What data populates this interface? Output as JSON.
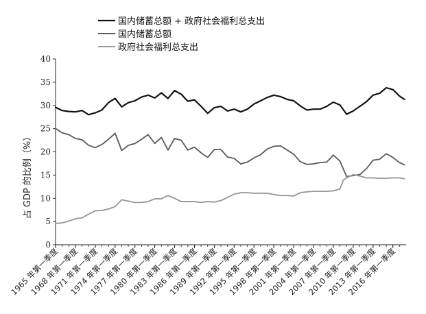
{
  "chart_data": {
    "type": "line",
    "ylabel": "占 GDP 的比例（%）",
    "ylim": [
      0,
      40
    ],
    "yticks": [
      0,
      5,
      10,
      15,
      20,
      25,
      30,
      35,
      40
    ],
    "xlim": [
      1965,
      2018
    ],
    "x_tick_labels": [
      "1965 年第一季度",
      "1968 年第一季度",
      "1971 年第一季度",
      "1974 年第一季度",
      "1977 年第一季度",
      "1980 年第一季度",
      "1983 年第一季度",
      "1986 年第一季度",
      "1989 年第一季度",
      "1992 年第一季度",
      "1995 年第一季度",
      "1998 年第一季度",
      "2001 年第一季度",
      "2004 年第一季度",
      "2007 年第一季度",
      "2010 年第一季度",
      "2013 年第一季度",
      "2016 年第一季度"
    ],
    "x_tick_values": [
      1965,
      1968,
      1971,
      1974,
      1977,
      1980,
      1983,
      1986,
      1989,
      1992,
      1995,
      1998,
      2001,
      2004,
      2007,
      2010,
      2013,
      2016
    ],
    "legend_placement": "top-left",
    "grid": false,
    "series": [
      {
        "name": "国内储蓄总额 + 政府社会福利总支出",
        "color": "#111111",
        "stroke_width": 2.2,
        "x": [
          1965,
          1966,
          1967,
          1968,
          1969,
          1970,
          1971,
          1972,
          1973,
          1974,
          1975,
          1976,
          1977,
          1978,
          1979,
          1980,
          1981,
          1982,
          1983,
          1984,
          1985,
          1986,
          1987,
          1988,
          1989,
          1990,
          1991,
          1992,
          1993,
          1994,
          1995,
          1996,
          1997,
          1998,
          1999,
          2000,
          2001,
          2002,
          2003,
          2004,
          2005,
          2006,
          2007,
          2008,
          2009,
          2010,
          2011,
          2012,
          2013,
          2014,
          2015,
          2016,
          2017,
          2017.75
        ],
        "values": [
          29.6,
          28.9,
          28.7,
          28.6,
          28.9,
          28.0,
          28.4,
          29.0,
          30.6,
          31.5,
          29.7,
          30.6,
          31.0,
          31.8,
          32.2,
          31.6,
          32.7,
          31.5,
          33.2,
          32.4,
          30.9,
          31.2,
          29.8,
          28.3,
          29.5,
          29.8,
          28.8,
          29.2,
          28.6,
          29.2,
          30.3,
          31.0,
          31.7,
          32.2,
          31.9,
          31.3,
          31.0,
          29.9,
          29.0,
          29.2,
          29.2,
          29.8,
          30.7,
          30.1,
          28.1,
          28.8,
          29.8,
          30.8,
          32.2,
          32.6,
          33.8,
          33.4,
          32.0,
          31.3
        ]
      },
      {
        "name": "国内储蓄总额",
        "color": "#5f5f5f",
        "stroke_width": 1.9,
        "x": [
          1965,
          1966,
          1967,
          1968,
          1969,
          1970,
          1971,
          1972,
          1973,
          1974,
          1975,
          1976,
          1977,
          1978,
          1979,
          1980,
          1981,
          1982,
          1983,
          1984,
          1985,
          1986,
          1987,
          1988,
          1989,
          1990,
          1991,
          1992,
          1993,
          1994,
          1995,
          1996,
          1997,
          1998,
          1999,
          2000,
          2001,
          2002,
          2003,
          2004,
          2005,
          2006,
          2007,
          2008,
          2009,
          2010,
          2011,
          2012,
          2013,
          2014,
          2015,
          2016,
          2017,
          2017.75
        ],
        "values": [
          25.0,
          24.1,
          23.7,
          22.9,
          22.6,
          21.4,
          20.9,
          21.6,
          22.7,
          24.0,
          20.3,
          21.4,
          21.8,
          22.7,
          23.7,
          21.8,
          23.1,
          20.4,
          22.9,
          22.5,
          20.4,
          21.0,
          19.8,
          18.8,
          20.5,
          20.5,
          18.9,
          18.6,
          17.4,
          17.8,
          18.7,
          19.4,
          20.6,
          21.2,
          21.3,
          20.4,
          19.5,
          17.9,
          17.3,
          17.4,
          17.7,
          17.8,
          19.3,
          18.0,
          14.7,
          14.9,
          15.1,
          16.4,
          18.2,
          18.4,
          19.6,
          18.8,
          17.7,
          17.2
        ]
      },
      {
        "name": "政府社会福利总支出",
        "color": "#999999",
        "stroke_width": 1.9,
        "x": [
          1965,
          1966,
          1967,
          1968,
          1969,
          1970,
          1971,
          1972,
          1973,
          1974,
          1975,
          1976,
          1977,
          1978,
          1979,
          1980,
          1981,
          1982,
          1983,
          1984,
          1985,
          1986,
          1987,
          1988,
          1989,
          1990,
          1991,
          1992,
          1993,
          1994,
          1995,
          1996,
          1997,
          1998,
          1999,
          2000,
          2001,
          2002,
          2003,
          2004,
          2005,
          2006,
          2007,
          2008,
          2008.5,
          2009,
          2010,
          2011,
          2012,
          2013,
          2014,
          2015,
          2016,
          2017,
          2017.75
        ],
        "values": [
          4.6,
          4.7,
          5.1,
          5.6,
          5.8,
          6.6,
          7.3,
          7.4,
          7.7,
          8.2,
          9.7,
          9.4,
          9.1,
          9.1,
          9.3,
          9.9,
          9.9,
          10.6,
          10.0,
          9.3,
          9.3,
          9.3,
          9.1,
          9.3,
          9.2,
          9.5,
          10.2,
          10.9,
          11.2,
          11.2,
          11.1,
          11.1,
          11.1,
          10.8,
          10.6,
          10.6,
          10.5,
          11.2,
          11.4,
          11.5,
          11.5,
          11.5,
          11.6,
          12.0,
          13.9,
          14.4,
          15.1,
          14.8,
          14.4,
          14.4,
          14.3,
          14.3,
          14.4,
          14.4,
          14.2
        ]
      }
    ]
  }
}
